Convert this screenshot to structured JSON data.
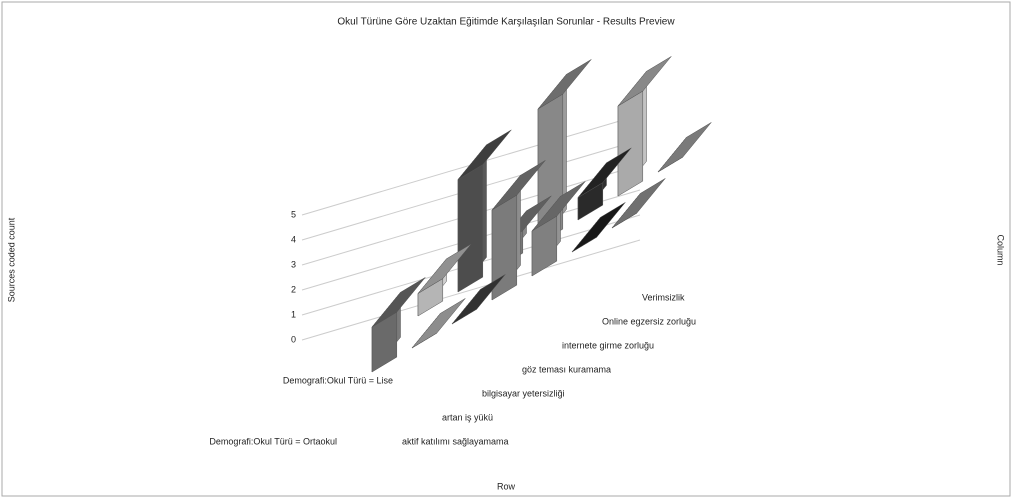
{
  "chart_data": {
    "type": "bar3d",
    "title": "Okul Türüne Göre Uzaktan Eğitimde Karşılaşılan Sorunlar - Results Preview",
    "y_label": "Sources coded count",
    "x_label": "Row",
    "z_label": "Column",
    "categories": [
      "aktif katılımı sağlayamama",
      "artan iş yükü",
      "bilgisayar yetersizliği",
      "göz teması kuramama",
      "internete girme zorluğu",
      "Online egzersiz zorluğu",
      "Verimsizlik"
    ],
    "series": [
      {
        "name": "Demografi:Okul Türü = Ortaokul",
        "colors": [
          "#6a6a6a",
          "#b0b0b0",
          "#3d3d3d",
          "#7b7b7b",
          "#808080",
          "#1e1e1e",
          "#8c8c8c"
        ],
        "values": [
          2,
          0,
          0,
          4,
          2,
          0,
          0
        ]
      },
      {
        "name": "Demografi:Okul Türü = Lise",
        "colors": [
          "#b5b5b5",
          "#4d4d4d",
          "#777777",
          "#888888",
          "#2a2a2a",
          "#aaaaaa",
          "#999999"
        ],
        "values": [
          1,
          5,
          1,
          6,
          1,
          4,
          0
        ]
      }
    ],
    "ylim": [
      0,
      6
    ],
    "yticks": [
      0,
      1,
      2,
      3,
      4,
      5
    ],
    "grid": true
  }
}
